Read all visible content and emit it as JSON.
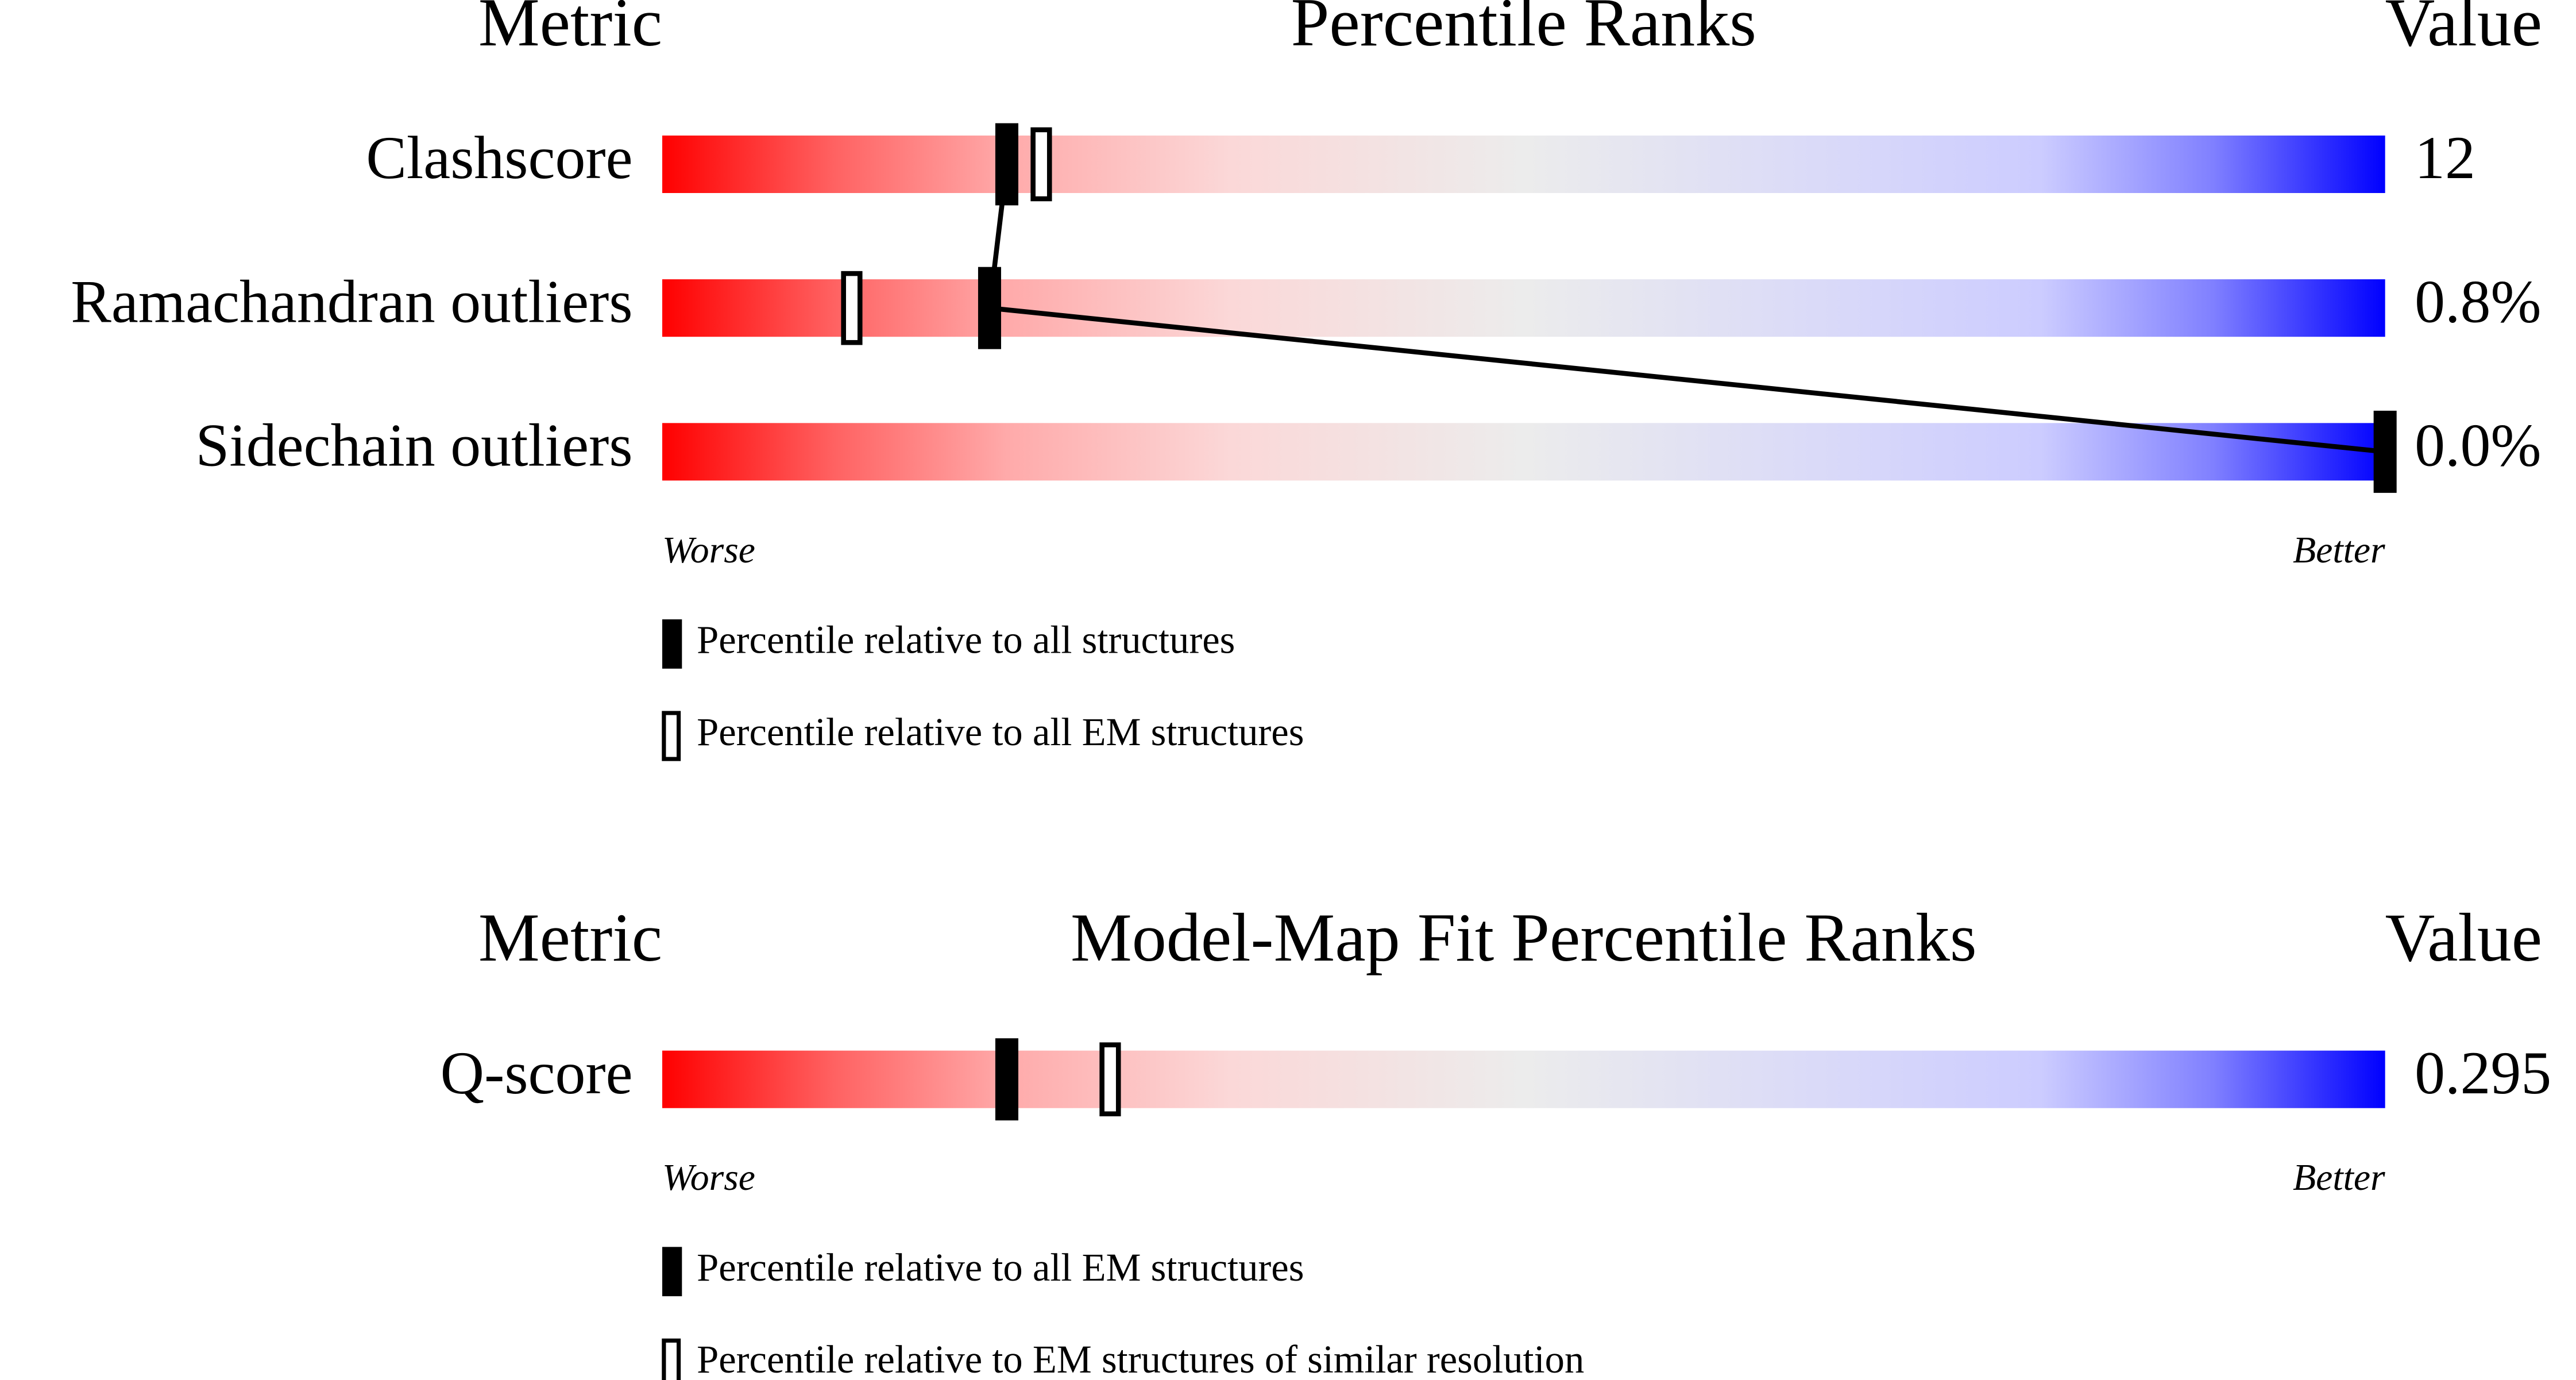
{
  "chart_data": [
    {
      "type": "percentile",
      "header": {
        "metric": "Metric",
        "title": "Percentile Ranks",
        "value": "Value"
      },
      "categories": [
        "Clashscore",
        "Ramachandran outliers",
        "Sidechain outliers"
      ],
      "metric_values": [
        "12",
        "0.8%",
        "0.0%"
      ],
      "series": [
        {
          "name": "Percentile relative to all structures",
          "style": "filled",
          "values": [
            20,
            19,
            100
          ]
        },
        {
          "name": "Percentile relative to all EM structures",
          "style": "open",
          "values": [
            22,
            11,
            null
          ]
        }
      ],
      "xlim": [
        0,
        100
      ],
      "axis_labels": [
        "Worse",
        "Better"
      ],
      "connect": true
    },
    {
      "type": "percentile",
      "header": {
        "metric": "Metric",
        "title": "Model-Map Fit Percentile Ranks",
        "value": "Value"
      },
      "categories": [
        "Q-score"
      ],
      "metric_values": [
        "0.295"
      ],
      "series": [
        {
          "name": "Percentile relative to all EM structures",
          "style": "filled",
          "values": [
            20
          ]
        },
        {
          "name": "Percentile relative to EM structures of similar resolution",
          "style": "open",
          "values": [
            26
          ]
        }
      ],
      "xlim": [
        0,
        100
      ],
      "axis_labels": [
        "Worse",
        "Better"
      ],
      "connect": false
    }
  ]
}
